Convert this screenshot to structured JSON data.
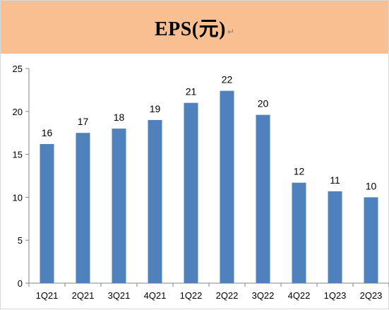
{
  "title": "EPS(元)",
  "return_mark": "↵",
  "colors": {
    "title_band": "#f9bf90",
    "bar": "#4f81bd",
    "axis": "#868686",
    "background": "#ffffff"
  },
  "chart_data": {
    "type": "bar",
    "title": "EPS(元)",
    "categories": [
      "1Q21",
      "2Q21",
      "3Q21",
      "4Q21",
      "1Q22",
      "2Q22",
      "3Q22",
      "4Q22",
      "1Q23",
      "2Q23"
    ],
    "values": [
      16.2,
      17.5,
      18.0,
      19.0,
      21.0,
      22.4,
      19.6,
      11.7,
      10.7,
      10.0
    ],
    "data_labels": [
      "16",
      "17",
      "18",
      "19",
      "21",
      "22",
      "20",
      "12",
      "11",
      "10"
    ],
    "y_ticks": [
      0,
      5,
      10,
      15,
      20,
      25
    ],
    "ylim": [
      0,
      25
    ],
    "xlabel": "",
    "ylabel": "",
    "grid": false,
    "legend": "none"
  }
}
